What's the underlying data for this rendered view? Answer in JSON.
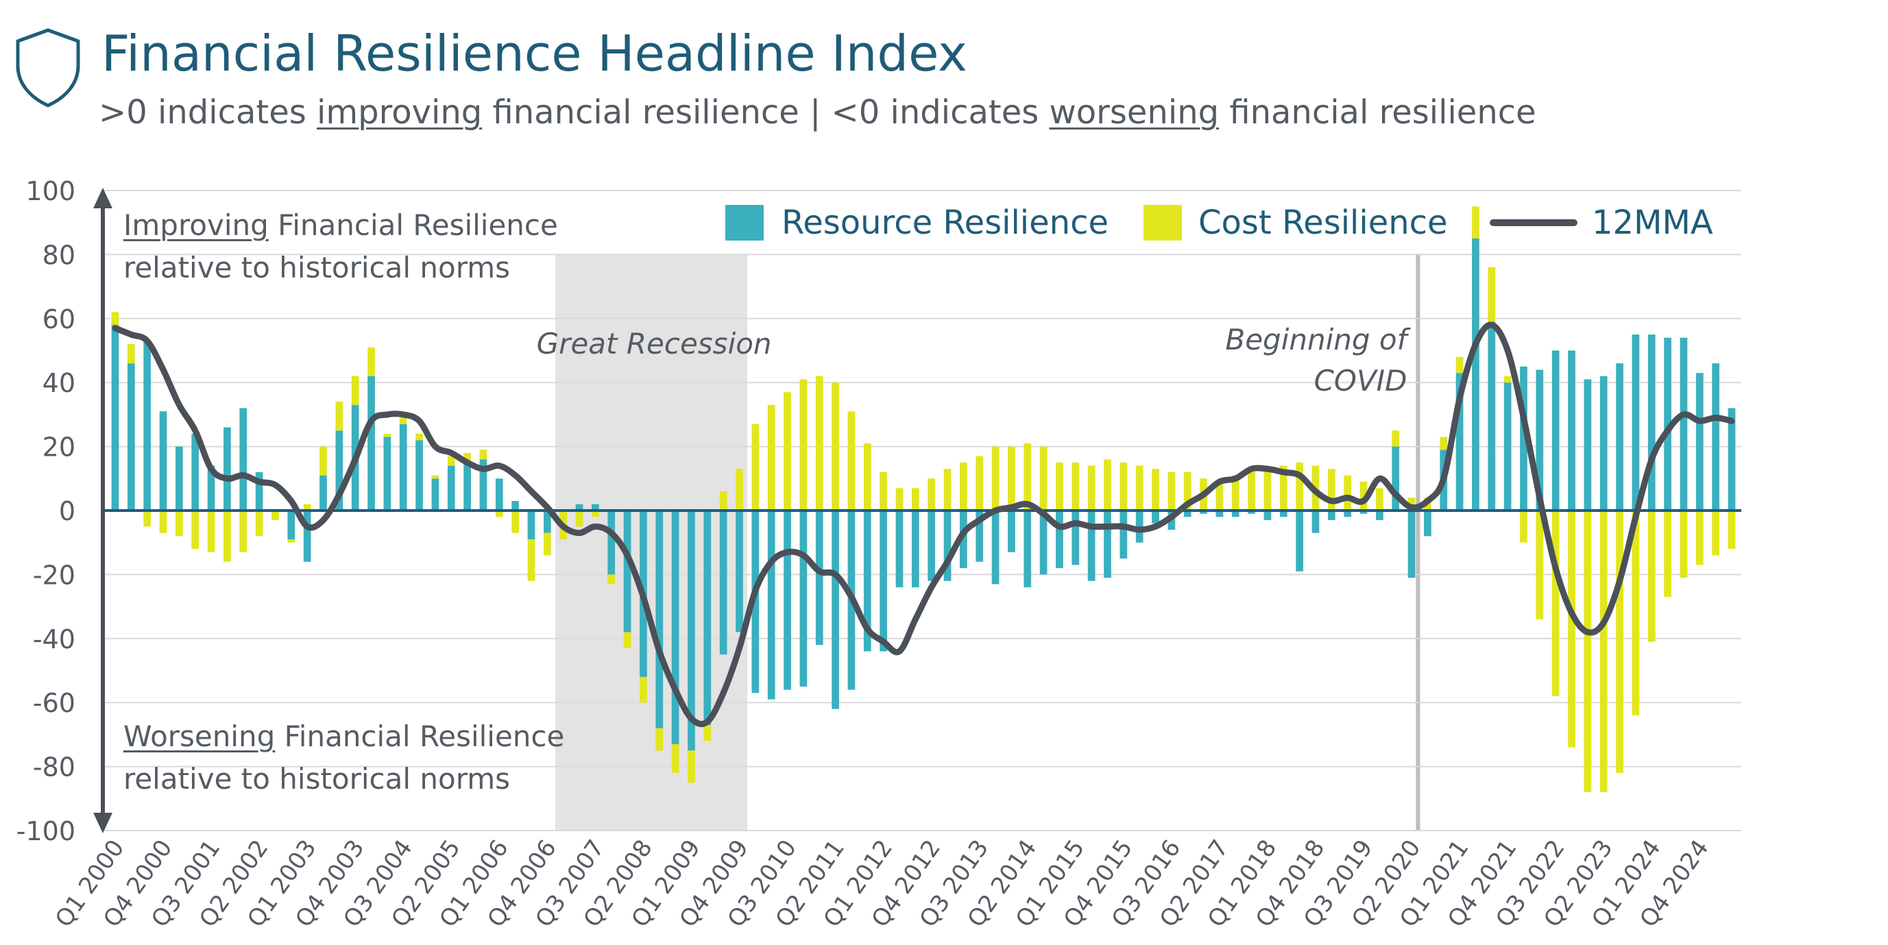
{
  "header": {
    "title": "Financial Resilience Headline Index",
    "subtitle_parts": [
      ">0 indicates ",
      "improving",
      " financial resilience | <0 indicates ",
      "worsening",
      " financial resilience"
    ],
    "icon": "shield-icon"
  },
  "notes": {
    "improving_u": "Improving",
    "improving_rest": " Financial Resilience",
    "improving_line2": "relative to historical norms",
    "worsening_u": "Worsening",
    "worsening_rest": " Financial Resilience",
    "worsening_line2": "relative to historical norms"
  },
  "colors": {
    "resource": "#3ab0bf",
    "cost": "#e2e61d",
    "line": "#4b5059",
    "axis": "#1f5c78",
    "shade": "#e3e3e3",
    "grid": "#d9d9d9",
    "text": "#555b63"
  },
  "chart_data": {
    "type": "bar",
    "stacked": true,
    "ylim": [
      -100,
      100
    ],
    "yticks": [
      100,
      80,
      60,
      40,
      20,
      0,
      -20,
      -40,
      -60,
      -80,
      -100
    ],
    "grid": true,
    "legend_position": "top-right",
    "xtick_labels": [
      "Q1 2000",
      "Q4 2000",
      "Q3 2001",
      "Q2 2002",
      "Q1 2003",
      "Q4 2003",
      "Q3 2004",
      "Q2 2005",
      "Q1 2006",
      "Q4 2006",
      "Q3 2007",
      "Q2 2008",
      "Q1 2009",
      "Q4 2009",
      "Q3 2010",
      "Q2 2011",
      "Q1 2012",
      "Q4 2012",
      "Q3 2013",
      "Q2 2014",
      "Q1 2015",
      "Q4 2015",
      "Q3 2016",
      "Q2 2017",
      "Q1 2018",
      "Q4 2018",
      "Q3 2019",
      "Q2 2020",
      "Q1 2021",
      "Q4 2021",
      "Q3 2022",
      "Q2 2023",
      "Q1 2024",
      "Q4 2024"
    ],
    "annotations": {
      "recession_label": "Great Recession",
      "recession_period": [
        "Q1 2007",
        "Q4 2009"
      ],
      "covid_label_1": "Beginning of",
      "covid_label_2": "COVID",
      "covid_period": "Q2 2020"
    },
    "series": [
      {
        "name": "Resource Resilience",
        "type": "bar",
        "values": [
          58,
          46,
          53,
          31,
          20,
          24,
          14,
          26,
          32,
          12,
          0,
          -9,
          -16,
          11,
          25,
          33,
          42,
          23,
          27,
          22,
          10,
          14,
          15,
          16,
          10,
          3,
          -9,
          -7,
          0,
          2,
          2,
          -20,
          -38,
          -52,
          -68,
          -73,
          -75,
          -67,
          -45,
          -38,
          -57,
          -59,
          -56,
          -55,
          -42,
          -62,
          -56,
          -44,
          -44,
          -24,
          -24,
          -22,
          -22,
          -18,
          -16,
          -23,
          -13,
          -24,
          -20,
          -18,
          -17,
          -22,
          -21,
          -15,
          -10,
          -4,
          -6,
          -2,
          -1,
          -2,
          -2,
          -1,
          -3,
          -2,
          -19,
          -7,
          -3,
          -2,
          -1,
          -3,
          20,
          -21,
          -8,
          19,
          43,
          85,
          59,
          40,
          45,
          44,
          50,
          50,
          41,
          42,
          46,
          55,
          55,
          54,
          54,
          43,
          46,
          32
        ],
        "note": "102 quarterly bars, Q1 2000 to Q2 2025"
      },
      {
        "name": "Cost Resilience",
        "type": "bar",
        "values": [
          4,
          6,
          -5,
          -7,
          -8,
          -12,
          -13,
          -16,
          -13,
          -8,
          -3,
          -1,
          2,
          9,
          9,
          9,
          9,
          1,
          2,
          2,
          1,
          3,
          3,
          3,
          -2,
          -7,
          -13,
          -7,
          -9,
          -5,
          -2,
          -3,
          -5,
          -8,
          -7,
          -9,
          -10,
          -5,
          6,
          13,
          27,
          33,
          37,
          41,
          42,
          40,
          31,
          21,
          12,
          7,
          7,
          10,
          13,
          15,
          17,
          20,
          20,
          21,
          20,
          15,
          15,
          14,
          16,
          15,
          14,
          13,
          12,
          12,
          10,
          9,
          11,
          12,
          13,
          14,
          15,
          14,
          13,
          11,
          9,
          7,
          5,
          4,
          4,
          4,
          5,
          10,
          17,
          2,
          -10,
          -34,
          -58,
          -74,
          -88,
          -88,
          -82,
          -64,
          -41,
          -27,
          -21,
          -17,
          -14,
          -12
        ]
      },
      {
        "name": "12MMA",
        "type": "line",
        "values": [
          57,
          55,
          53,
          44,
          33,
          25,
          13,
          10,
          11,
          9,
          8,
          3,
          -5,
          -3,
          5,
          16,
          28,
          30,
          30,
          28,
          20,
          18,
          15,
          13,
          14,
          11,
          6,
          1,
          -5,
          -7,
          -5,
          -7,
          -14,
          -27,
          -44,
          -56,
          -65,
          -66,
          -57,
          -43,
          -25,
          -16,
          -13,
          -14,
          -19,
          -20,
          -27,
          -37,
          -41,
          -44,
          -34,
          -24,
          -16,
          -7,
          -3,
          0,
          1,
          2,
          -1,
          -5,
          -4,
          -5,
          -5,
          -5,
          -6,
          -5,
          -2,
          2,
          5,
          9,
          10,
          13,
          13,
          12,
          11,
          6,
          3,
          4,
          3,
          10,
          5,
          1,
          3,
          10,
          35,
          52,
          58,
          50,
          29,
          4,
          -18,
          -32,
          -38,
          -35,
          -22,
          -2,
          16,
          25,
          30,
          28,
          29,
          28
        ]
      }
    ]
  }
}
